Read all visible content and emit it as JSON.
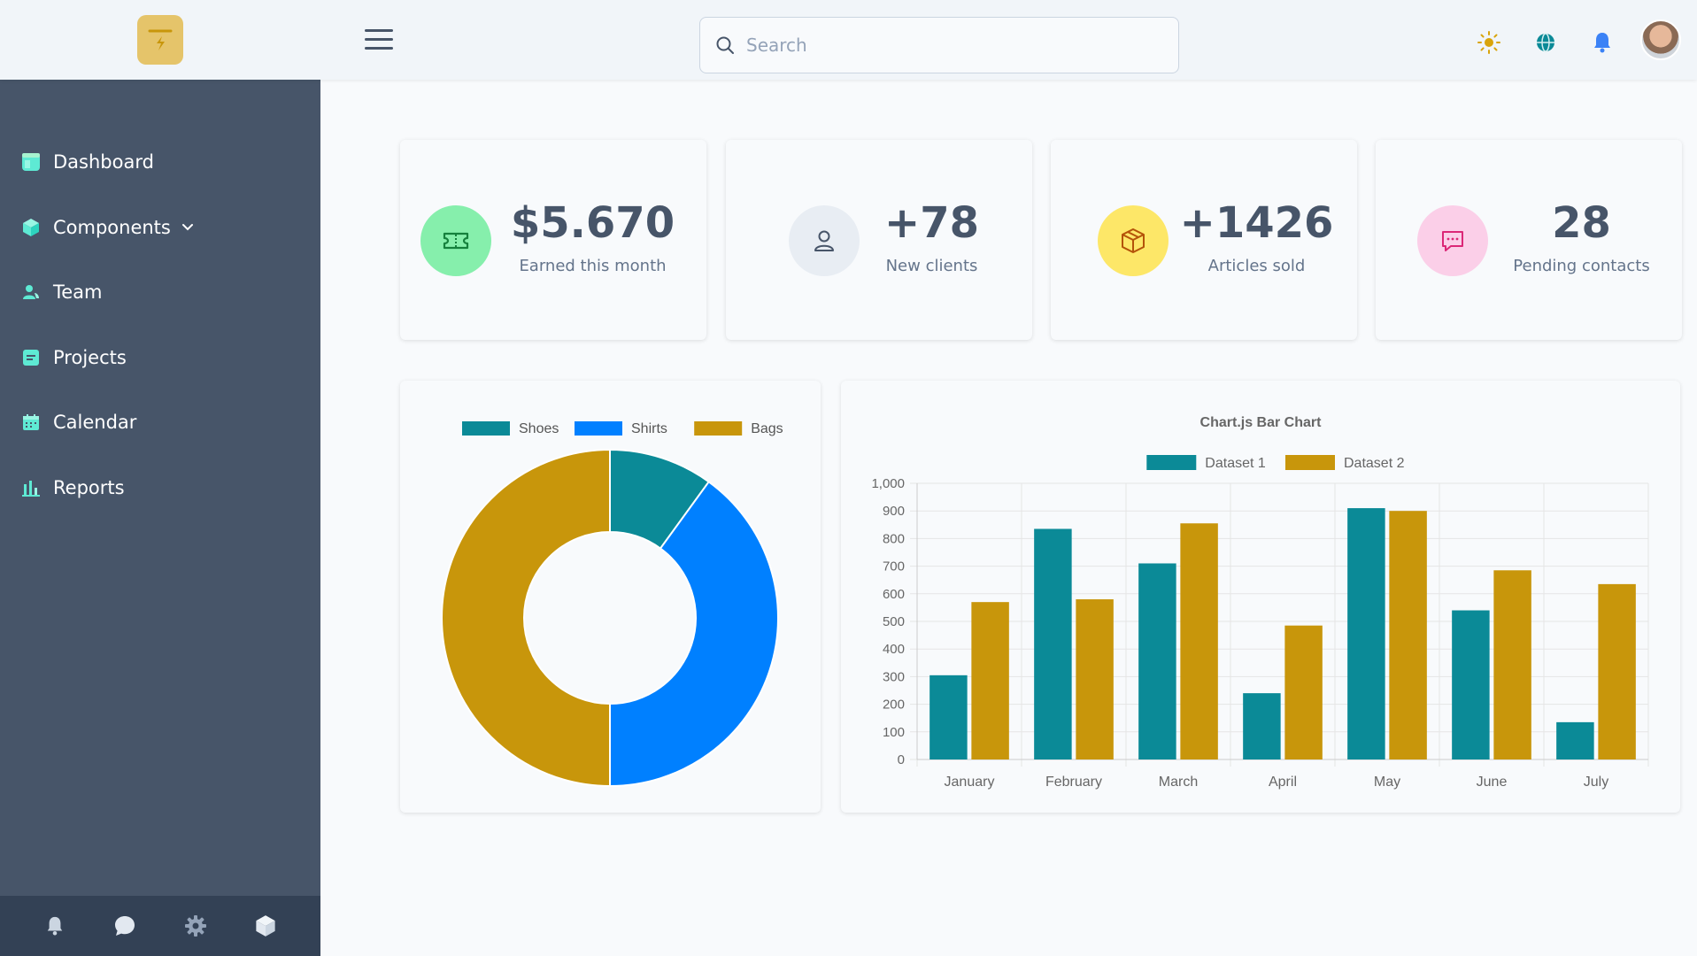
{
  "search": {
    "placeholder": "Search"
  },
  "sidebar": {
    "items": [
      {
        "label": "Dashboard"
      },
      {
        "label": "Components"
      },
      {
        "label": "Team"
      },
      {
        "label": "Projects"
      },
      {
        "label": "Calendar"
      },
      {
        "label": "Reports"
      }
    ]
  },
  "stats": [
    {
      "value": "$5.670",
      "label": "Earned this month"
    },
    {
      "value": "+78",
      "label": "New clients"
    },
    {
      "value": "+1426",
      "label": "Articles sold"
    },
    {
      "value": "28",
      "label": "Pending contacts"
    }
  ],
  "colors": {
    "teal": "#0b8a97",
    "blue": "#0080ff",
    "gold": "#c8960b",
    "sidebar": "#475569"
  },
  "chart_data": [
    {
      "type": "pie",
      "variant": "doughnut",
      "title": "",
      "legend": "top",
      "categories": [
        "Shoes",
        "Shirts",
        "Bags"
      ],
      "values": [
        50,
        200,
        250
      ],
      "colors": [
        "#0b8a97",
        "#0080ff",
        "#c8960b"
      ]
    },
    {
      "type": "bar",
      "title": "Chart.js Bar Chart",
      "legend": "top",
      "categories": [
        "January",
        "February",
        "March",
        "April",
        "May",
        "June",
        "July"
      ],
      "series": [
        {
          "name": "Dataset 1",
          "values": [
            305,
            835,
            710,
            240,
            910,
            540,
            135
          ],
          "color": "#0b8a97"
        },
        {
          "name": "Dataset 2",
          "values": [
            570,
            580,
            855,
            485,
            900,
            685,
            635
          ],
          "color": "#c8960b"
        }
      ],
      "ylim": [
        0,
        1000
      ],
      "yticks": [
        "0",
        "100",
        "200",
        "300",
        "400",
        "500",
        "600",
        "700",
        "800",
        "900",
        "1,000"
      ],
      "grid": true
    }
  ]
}
